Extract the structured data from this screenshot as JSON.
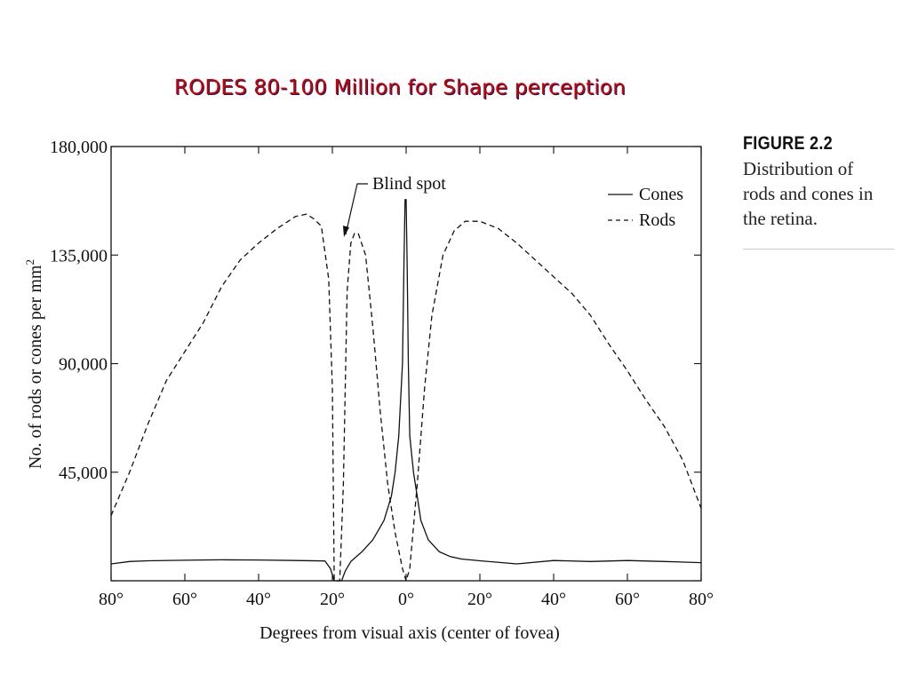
{
  "slide_title": "RODES 80-100 Million for Shape perception",
  "caption": {
    "heading": "FIGURE 2.2",
    "lines": [
      "Distribution of",
      "rods and cones in",
      "the retina."
    ]
  },
  "chart_data": {
    "type": "line",
    "xlabel": "Degrees from visual axis (center of fovea)",
    "ylabel": "No. of rods or cones per mm",
    "ylabel_superscript": "2",
    "x_ticks": [
      -80,
      -60,
      -40,
      -20,
      0,
      20,
      40,
      60,
      80
    ],
    "x_tick_labels": [
      "80°",
      "60°",
      "40°",
      "20°",
      "0°",
      "20°",
      "40°",
      "60°",
      "80°"
    ],
    "y_ticks": [
      0,
      45000,
      90000,
      135000,
      180000
    ],
    "y_tick_labels": [
      "",
      "45,000",
      "90,000",
      "135,000",
      "180,000"
    ],
    "xlim": [
      -80,
      80
    ],
    "ylim": [
      0,
      180000
    ],
    "legend_position": "top-right",
    "annotation": {
      "text": "Blind spot",
      "x": -17.5,
      "y": 145000
    },
    "series": [
      {
        "name": "Cones",
        "style": "solid",
        "x": [
          -80,
          -75,
          -70,
          -60,
          -50,
          -40,
          -30,
          -22,
          -20.5,
          -19.5,
          -18.5,
          -17.5,
          -16.5,
          -15,
          -12,
          -9,
          -6,
          -4,
          -3,
          -2,
          -1,
          -0.6,
          -0.3,
          0,
          0.3,
          0.6,
          1,
          2,
          3,
          4,
          6,
          9,
          12,
          15,
          20,
          30,
          40,
          50,
          60,
          70,
          80
        ],
        "y": [
          7000,
          8000,
          8300,
          8500,
          8700,
          8600,
          8400,
          8200,
          5000,
          0,
          0,
          0,
          4000,
          8000,
          12000,
          17000,
          25000,
          35000,
          45000,
          60000,
          90000,
          130000,
          158000,
          158000,
          130000,
          90000,
          60000,
          45000,
          35000,
          25000,
          17000,
          12000,
          10000,
          9000,
          8300,
          7000,
          8400,
          8000,
          8400,
          8000,
          7500
        ]
      },
      {
        "name": "Rods",
        "style": "dashed",
        "x": [
          -80,
          -75,
          -70,
          -65,
          -60,
          -55,
          -50,
          -45,
          -40,
          -35,
          -30,
          -27,
          -25,
          -23,
          -21,
          -20,
          -19.5,
          -19,
          -18.5,
          -18,
          -17,
          -16,
          -15,
          -14,
          -13,
          -11,
          -9,
          -7,
          -5,
          -3,
          -1,
          0,
          1,
          3,
          5,
          7,
          10,
          13,
          16,
          20,
          25,
          30,
          35,
          40,
          45,
          50,
          55,
          60,
          65,
          70,
          75,
          80
        ],
        "y": [
          27000,
          45000,
          65000,
          83000,
          95000,
          107000,
          122000,
          133000,
          140000,
          146000,
          151000,
          152000,
          150000,
          147000,
          125000,
          80000,
          0,
          0,
          0,
          0,
          40000,
          120000,
          140000,
          144000,
          144000,
          135000,
          105000,
          70000,
          40000,
          20000,
          5000,
          0,
          5000,
          40000,
          80000,
          110000,
          135000,
          145000,
          149000,
          149000,
          146000,
          140000,
          133000,
          126000,
          119000,
          110000,
          98000,
          87000,
          75000,
          64000,
          50000,
          30000
        ]
      }
    ]
  }
}
